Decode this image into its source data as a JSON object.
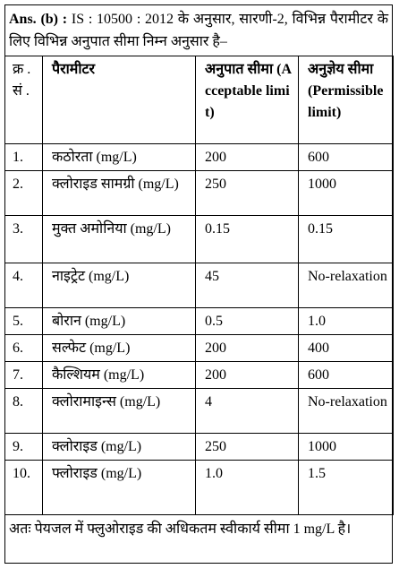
{
  "header": {
    "label": "Ans. (b) :",
    "text": "IS : 10500 : 2012 के अनुसार, सारणी-2, विभिन्न पैरामीटर के लिए विभिन्न अनुपात सीमा निम्न अनुसार है–"
  },
  "table": {
    "columns": [
      "क्र .सं .",
      "पैरामीटर",
      "अनुपात सीमा (Acceptable limit)",
      "अनुज्ञेय सीमा (Permissible limit)"
    ],
    "rows": [
      [
        "1.",
        "कठोरता (mg/L)",
        "200",
        "600"
      ],
      [
        "2.",
        "क्लोराइड सामग्री (mg/L)",
        "250",
        "1000"
      ],
      [
        "3.",
        "मुक्त अमोनिया (mg/L)",
        "0.15",
        "0.15"
      ],
      [
        "4.",
        "नाइट्रेट (mg/L)",
        "45",
        "No-relaxation"
      ],
      [
        "5.",
        "बोरान (mg/L)",
        "0.5",
        "1.0"
      ],
      [
        "6.",
        "सल्फेट (mg/L)",
        "200",
        "400"
      ],
      [
        "7.",
        "कैल्शियम (mg/L)",
        "200",
        "600"
      ],
      [
        "8.",
        "क्लोरामाइन्स (mg/L)",
        "4",
        "No-relaxation"
      ],
      [
        "9.",
        "क्लोराइड (mg/L)",
        "250",
        "1000"
      ],
      [
        "10.",
        "फ्लोराइड (mg/L)",
        "1.0",
        "1.5"
      ]
    ]
  },
  "footer": {
    "text": "अतः पेयजल में फ्लुओराइड की अधिकतम स्वीकार्य सीमा 1 mg/L है।"
  }
}
